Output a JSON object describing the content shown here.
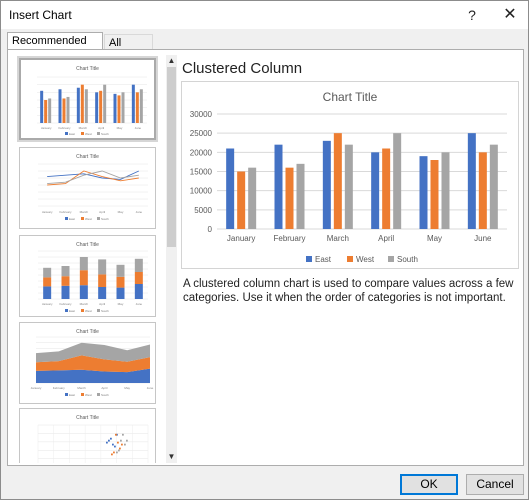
{
  "window": {
    "title": "Insert Chart",
    "help_label": "?",
    "close_label": "✕"
  },
  "tabs": [
    {
      "label": "Recommended Charts",
      "active": true
    },
    {
      "label": "All Charts",
      "active": false
    }
  ],
  "thumbnails": [
    {
      "type": "clustered-column",
      "title": "Chart Title"
    },
    {
      "type": "line",
      "title": "Chart Title"
    },
    {
      "type": "stacked-column",
      "title": "Chart Title"
    },
    {
      "type": "stacked-area",
      "title": "Chart Title"
    },
    {
      "type": "scatter",
      "title": "Chart Title"
    }
  ],
  "selected": {
    "name": "Clustered Column",
    "description": "A clustered column chart is used to compare values across a few categories. Use it when the order of categories is not important."
  },
  "chart_data": {
    "type": "bar",
    "title": "Chart Title",
    "categories": [
      "January",
      "February",
      "March",
      "April",
      "May",
      "June"
    ],
    "series": [
      {
        "name": "East",
        "values": [
          21000,
          22000,
          23000,
          20000,
          19000,
          25000
        ],
        "color": "#4472c4"
      },
      {
        "name": "West",
        "values": [
          15000,
          16000,
          25000,
          21000,
          18000,
          20000
        ],
        "color": "#ed7d31"
      },
      {
        "name": "South",
        "values": [
          16000,
          17000,
          22000,
          25000,
          20000,
          22000
        ],
        "color": "#a5a5a5"
      }
    ],
    "ylim": [
      0,
      30000
    ],
    "yticks": [
      "30000",
      "25000",
      "20000",
      "15000",
      "10000",
      "5000",
      "0"
    ],
    "grid": true,
    "legend": "bottom"
  },
  "buttons": {
    "ok": "OK",
    "cancel": "Cancel"
  },
  "scroll_icons": {
    "up": "▲",
    "down": "▼"
  }
}
